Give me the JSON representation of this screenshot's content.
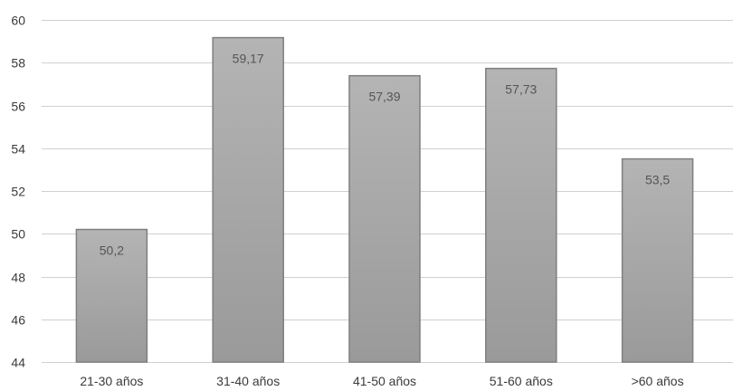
{
  "chart_data": {
    "type": "bar",
    "categories": [
      "21-30 años",
      "31-40 años",
      "41-50 años",
      "51-60 años",
      ">60 años"
    ],
    "values": [
      50.2,
      59.17,
      57.39,
      57.73,
      53.5
    ],
    "data_labels": [
      "50,2",
      "59,17",
      "57,39",
      "57,73",
      "53,5"
    ],
    "ylim": [
      44,
      60
    ],
    "yticks": [
      44,
      46,
      48,
      50,
      52,
      54,
      56,
      58,
      60
    ],
    "grid": true,
    "legend": "none",
    "colors": {
      "bar_top": "#b4b4b4",
      "bar_bottom": "#9a9a9a",
      "bar_stroke": "#7f7f7f",
      "grid": "#d0d0d0"
    }
  }
}
